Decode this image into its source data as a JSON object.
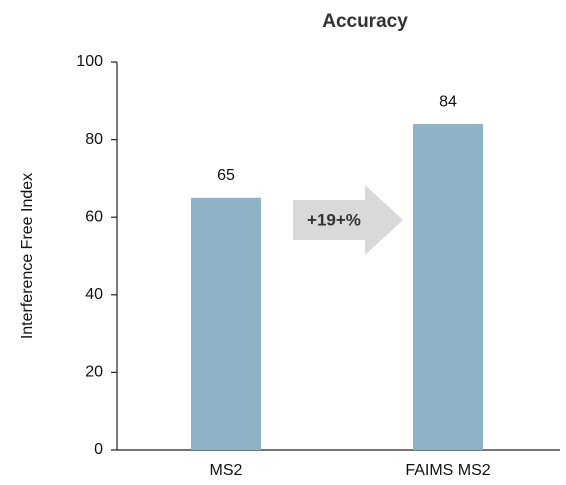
{
  "chart_data": {
    "type": "bar",
    "title": "Accuracy",
    "y_label": "Interference Free Index",
    "categories": [
      "MS2",
      "FAIMS MS2"
    ],
    "values": [
      65,
      84
    ],
    "color": "#8fb3c6",
    "annotation": "+19+%",
    "ylim": [
      0,
      100
    ],
    "yticks": [
      0,
      20,
      40,
      60,
      80,
      100
    ],
    "grid": false
  }
}
